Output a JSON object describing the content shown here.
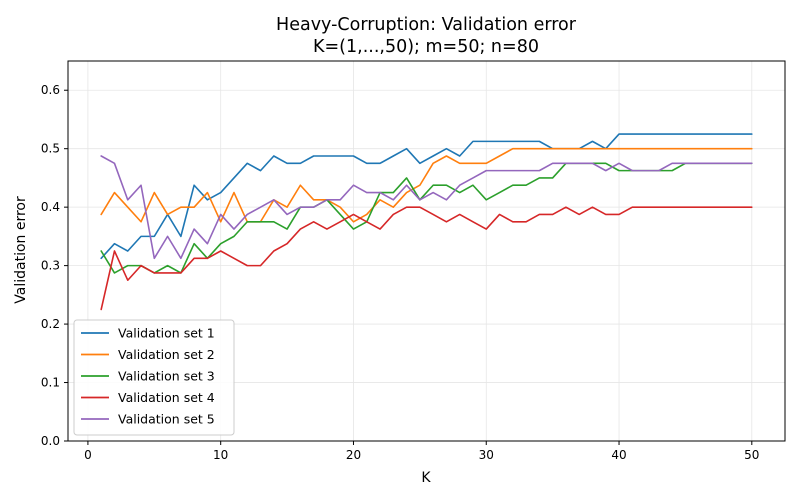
{
  "chart_data": {
    "type": "line",
    "title": "Heavy-Corruption: Validation error",
    "subtitle": "K=(1,...,50); m=50; n=80",
    "xlabel": "K",
    "ylabel": "Validation error",
    "xlim": [
      -1.5,
      52.5
    ],
    "ylim": [
      0.0,
      0.65
    ],
    "xticks": [
      0,
      10,
      20,
      30,
      40,
      50
    ],
    "yticks": [
      0.0,
      0.1,
      0.2,
      0.3,
      0.4,
      0.5,
      0.6
    ],
    "xtick_labels": [
      "0",
      "10",
      "20",
      "30",
      "40",
      "50"
    ],
    "ytick_labels": [
      "0.0",
      "0.1",
      "0.2",
      "0.3",
      "0.4",
      "0.5",
      "0.6"
    ],
    "grid": true,
    "legend_position": "lower-left",
    "x": [
      1,
      2,
      3,
      4,
      5,
      6,
      7,
      8,
      9,
      10,
      11,
      12,
      13,
      14,
      15,
      16,
      17,
      18,
      19,
      20,
      21,
      22,
      23,
      24,
      25,
      26,
      27,
      28,
      29,
      30,
      31,
      32,
      33,
      34,
      35,
      36,
      37,
      38,
      39,
      40,
      41,
      42,
      43,
      44,
      45,
      46,
      47,
      48,
      49,
      50
    ],
    "series": [
      {
        "name": "Validation set 1",
        "color": "#1f77b4",
        "values": [
          0.3125,
          0.3375,
          0.325,
          0.35,
          0.35,
          0.3875,
          0.35,
          0.4375,
          0.4125,
          0.425,
          0.45,
          0.475,
          0.4625,
          0.4875,
          0.475,
          0.475,
          0.4875,
          0.4875,
          0.4875,
          0.4875,
          0.475,
          0.475,
          0.4875,
          0.5,
          0.475,
          0.4875,
          0.5,
          0.4875,
          0.5125,
          0.5125,
          0.5125,
          0.5125,
          0.5125,
          0.5125,
          0.5,
          0.5,
          0.5,
          0.5125,
          0.5,
          0.525,
          0.525,
          0.525,
          0.525,
          0.525,
          0.525,
          0.525,
          0.525,
          0.525,
          0.525,
          0.525
        ]
      },
      {
        "name": "Validation set 2",
        "color": "#ff7f0e",
        "values": [
          0.3875,
          0.425,
          0.4,
          0.375,
          0.425,
          0.3875,
          0.4,
          0.4,
          0.425,
          0.375,
          0.425,
          0.375,
          0.375,
          0.4125,
          0.4,
          0.4375,
          0.4125,
          0.4125,
          0.4,
          0.375,
          0.3875,
          0.4125,
          0.4,
          0.425,
          0.4375,
          0.475,
          0.4875,
          0.475,
          0.475,
          0.475,
          0.4875,
          0.5,
          0.5,
          0.5,
          0.5,
          0.5,
          0.5,
          0.5,
          0.5,
          0.5,
          0.5,
          0.5,
          0.5,
          0.5,
          0.5,
          0.5,
          0.5,
          0.5,
          0.5,
          0.5
        ]
      },
      {
        "name": "Validation set 3",
        "color": "#2ca02c",
        "values": [
          0.325,
          0.2875,
          0.3,
          0.3,
          0.2875,
          0.3,
          0.2875,
          0.3375,
          0.3125,
          0.3375,
          0.35,
          0.375,
          0.375,
          0.375,
          0.3625,
          0.4,
          0.4,
          0.4125,
          0.3875,
          0.3625,
          0.375,
          0.425,
          0.425,
          0.45,
          0.4125,
          0.4375,
          0.4375,
          0.425,
          0.4375,
          0.4125,
          0.425,
          0.4375,
          0.4375,
          0.45,
          0.45,
          0.475,
          0.475,
          0.475,
          0.475,
          0.4625,
          0.4625,
          0.4625,
          0.4625,
          0.4625,
          0.475,
          0.475,
          0.475,
          0.475,
          0.475,
          0.475
        ]
      },
      {
        "name": "Validation set 4",
        "color": "#d62728",
        "values": [
          0.225,
          0.325,
          0.275,
          0.3,
          0.2875,
          0.2875,
          0.2875,
          0.3125,
          0.3125,
          0.325,
          0.3125,
          0.3,
          0.3,
          0.325,
          0.3375,
          0.3625,
          0.375,
          0.3625,
          0.375,
          0.3875,
          0.375,
          0.3625,
          0.3875,
          0.4,
          0.4,
          0.3875,
          0.375,
          0.3875,
          0.375,
          0.3625,
          0.3875,
          0.375,
          0.375,
          0.3875,
          0.3875,
          0.4,
          0.3875,
          0.4,
          0.3875,
          0.3875,
          0.4,
          0.4,
          0.4,
          0.4,
          0.4,
          0.4,
          0.4,
          0.4,
          0.4,
          0.4
        ]
      },
      {
        "name": "Validation set 5",
        "color": "#9467bd",
        "values": [
          0.4875,
          0.475,
          0.4125,
          0.4375,
          0.3125,
          0.35,
          0.3125,
          0.3625,
          0.3375,
          0.3875,
          0.3625,
          0.3875,
          0.4,
          0.4125,
          0.3875,
          0.4,
          0.4,
          0.4125,
          0.4125,
          0.4375,
          0.425,
          0.425,
          0.4125,
          0.4375,
          0.4125,
          0.425,
          0.4125,
          0.4375,
          0.45,
          0.4625,
          0.4625,
          0.4625,
          0.4625,
          0.4625,
          0.475,
          0.475,
          0.475,
          0.475,
          0.4625,
          0.475,
          0.4625,
          0.4625,
          0.4625,
          0.475,
          0.475,
          0.475,
          0.475,
          0.475,
          0.475,
          0.475
        ]
      }
    ]
  }
}
